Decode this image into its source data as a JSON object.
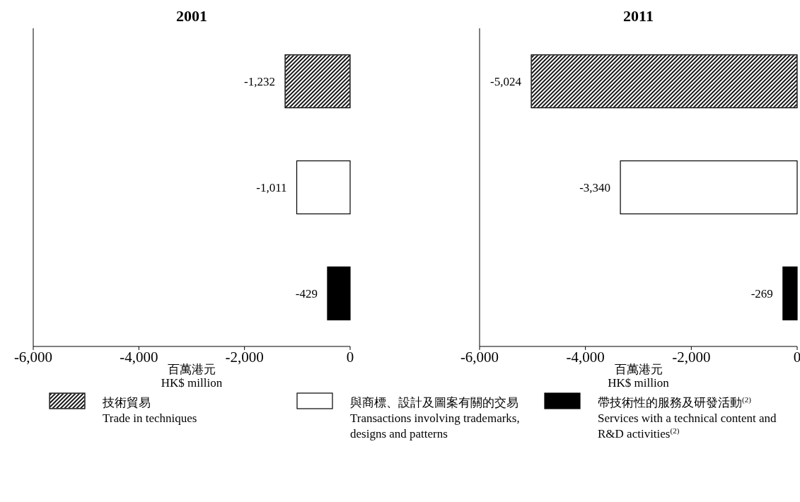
{
  "chart_data": [
    {
      "type": "bar",
      "orientation": "horizontal",
      "title": "2001",
      "xlabel": "百萬港元\nHK$ million",
      "categories": [
        null,
        null,
        null
      ],
      "xlim": [
        -6000,
        0
      ],
      "xticks": [
        {
          "value": -6000,
          "label": "-6,000"
        },
        {
          "value": -4000,
          "label": "-4,000"
        },
        {
          "value": -2000,
          "label": "-2,000"
        },
        0
      ],
      "legend": "bottom",
      "series": [
        {
          "name": "技術貿易\nTrade in techniques",
          "color": "#8c8c8c",
          "values": [
            -1232,
            null,
            null
          ],
          "value_labels": [
            "-1,232",
            null,
            null
          ]
        },
        {
          "name": "與商標、設計及圖案有關的交易\nTransactions involving trademarks, designs and patterns",
          "color": "#ffffff",
          "values": [
            null,
            -1011,
            null
          ],
          "value_labels": [
            null,
            "-1,011",
            null
          ]
        },
        {
          "name": "帶技術性的服務及研發活動$^{(2)}$\nServices with a technical content and R&D activities$^{(2)}$",
          "color": "#000000",
          "values": [
            null,
            null,
            -429
          ],
          "value_labels": [
            null,
            null,
            "-429"
          ]
        }
      ]
    },
    {
      "type": "bar",
      "orientation": "horizontal",
      "title": "2011",
      "xlabel": "百萬港元\nHK$ million",
      "categories": [
        null,
        null,
        null
      ],
      "xlim": [
        -6000,
        0
      ],
      "xticks": [
        {
          "value": -6000,
          "label": "-6,000"
        },
        {
          "value": -4000,
          "label": "-4,000"
        },
        {
          "value": -2000,
          "label": "-2,000"
        },
        0
      ],
      "series": [
        {
          "color": "#8c8c8c",
          "values": [
            -5024,
            null,
            null
          ],
          "value_labels": [
            "-5,024",
            null,
            null
          ]
        },
        {
          "color": "#ffffff",
          "values": [
            null,
            -3340,
            null
          ],
          "value_labels": [
            null,
            "-3,340",
            null
          ]
        },
        {
          "color": "#000000",
          "values": [
            null,
            null,
            -269
          ],
          "value_labels": [
            null,
            null,
            "-269"
          ]
        }
      ]
    }
  ]
}
